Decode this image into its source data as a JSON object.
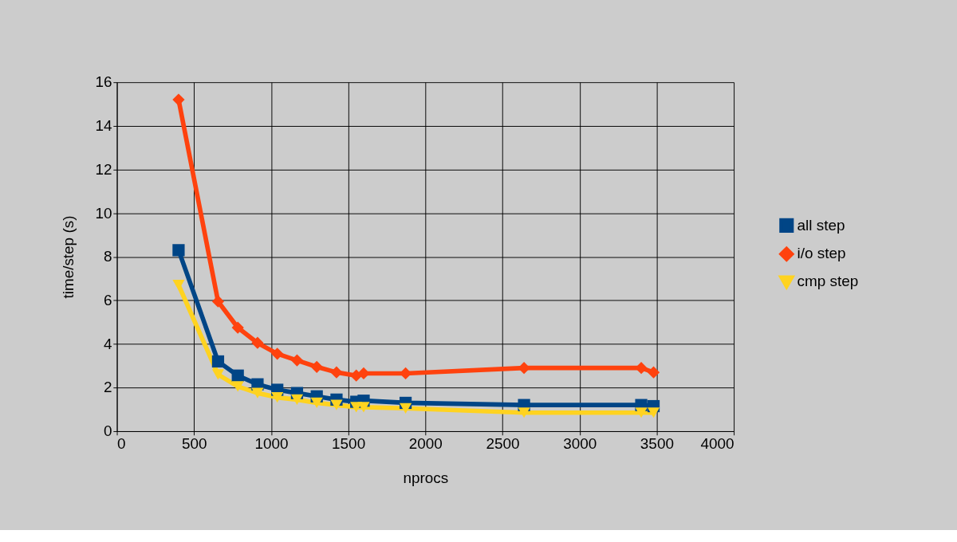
{
  "chart_data": {
    "type": "line",
    "xlabel": "nprocs",
    "ylabel": "time/step (s)",
    "x": [
      400,
      656,
      784,
      912,
      1040,
      1168,
      1296,
      1424,
      1552,
      1600,
      1872,
      2640,
      3400,
      3480
    ],
    "series": [
      {
        "name": "all step",
        "color": "#004586",
        "marker": "square",
        "values": [
          8.3,
          3.2,
          2.55,
          2.15,
          1.9,
          1.75,
          1.6,
          1.45,
          1.35,
          1.4,
          1.3,
          1.2,
          1.2,
          1.15
        ]
      },
      {
        "name": "i/o step",
        "color": "#ff420e",
        "marker": "diamond",
        "values": [
          15.2,
          5.95,
          4.75,
          4.05,
          3.55,
          3.25,
          2.95,
          2.7,
          2.55,
          2.65,
          2.65,
          2.9,
          2.9,
          2.7
        ]
      },
      {
        "name": "cmp step",
        "color": "#ffd320",
        "marker": "triangle-down",
        "values": [
          6.7,
          2.6,
          2.05,
          1.75,
          1.55,
          1.45,
          1.3,
          1.2,
          1.1,
          1.1,
          1.05,
          0.85,
          0.85,
          0.85
        ]
      }
    ],
    "xlim": [
      0,
      4000
    ],
    "xticks": [
      0,
      500,
      1000,
      1500,
      2000,
      2500,
      3000,
      3500,
      4000
    ],
    "ylim": [
      0,
      16
    ],
    "yticks": [
      0,
      2,
      4,
      6,
      8,
      10,
      12,
      14,
      16
    ],
    "grid": true,
    "legend": "right",
    "line_style": "solid"
  }
}
